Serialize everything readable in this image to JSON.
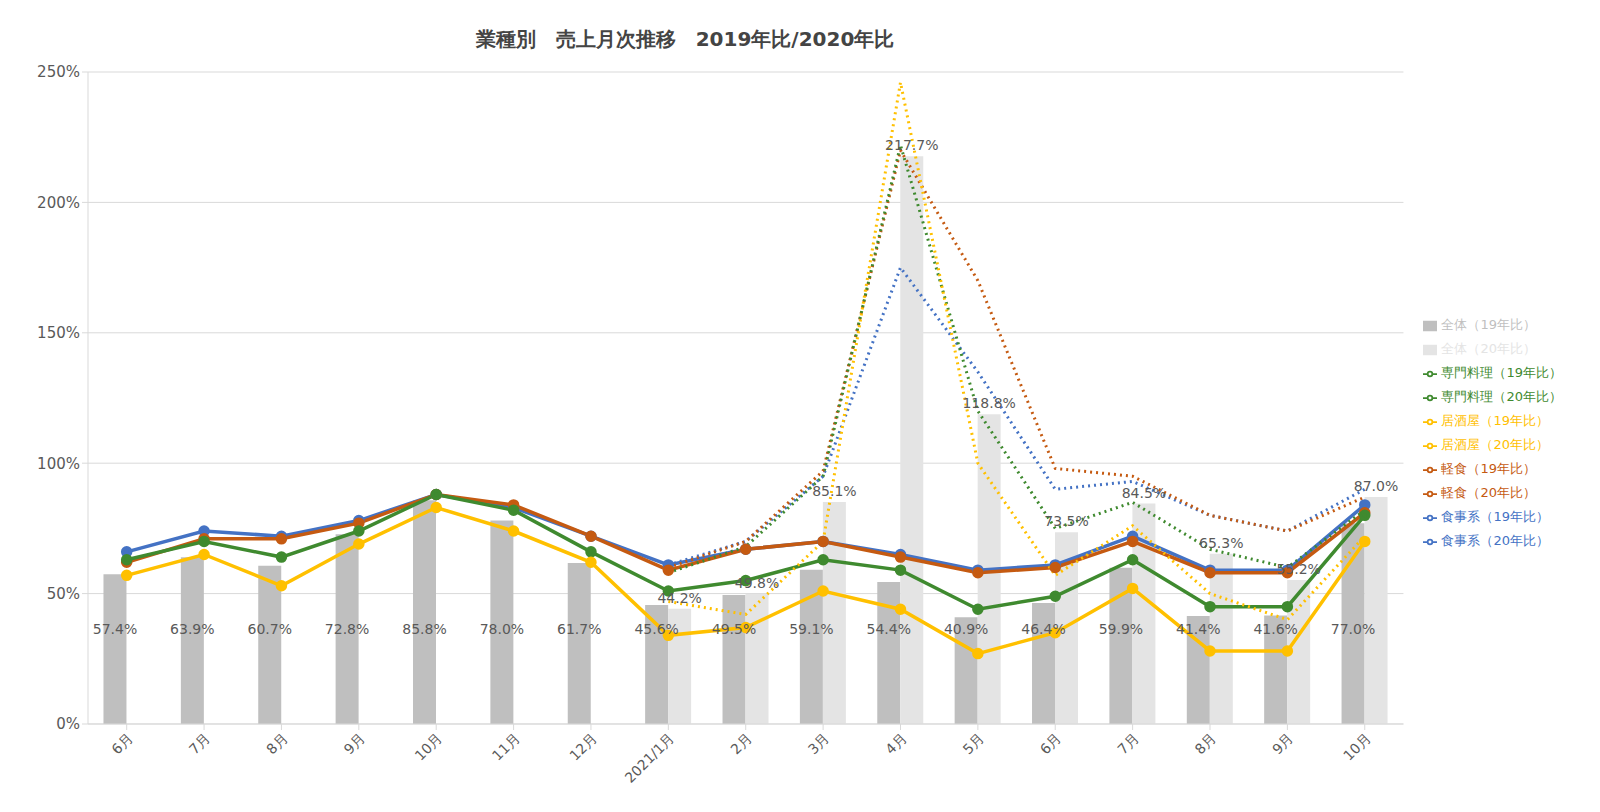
{
  "chart_data": {
    "type": "combo",
    "title": "業種別　売上月次推移　2019年比/2020年比",
    "categories": [
      "6月",
      "7月",
      "8月",
      "9月",
      "10月",
      "11月",
      "12月",
      "2021/1月",
      "2月",
      "3月",
      "4月",
      "5月",
      "6月",
      "7月",
      "8月",
      "9月",
      "10月"
    ],
    "ylim": [
      0,
      250
    ],
    "yticks": [
      {
        "value": 0,
        "label": "0%"
      },
      {
        "value": 50,
        "label": "50%"
      },
      {
        "value": 100,
        "label": "100%"
      },
      {
        "value": 150,
        "label": "150%"
      },
      {
        "value": 200,
        "label": "200%"
      },
      {
        "value": 250,
        "label": "250%"
      }
    ],
    "grid": true,
    "legend": "right",
    "series": [
      {
        "name": "全体（19年比）",
        "type": "bar",
        "color": "#bfbfbf",
        "data_labels": true,
        "values": [
          57.4,
          63.9,
          60.7,
          72.8,
          85.8,
          78.0,
          61.7,
          45.6,
          49.5,
          59.1,
          54.4,
          40.9,
          46.4,
          59.9,
          41.4,
          41.6,
          77.0
        ],
        "value_labels": [
          "57.4%",
          "63.9%",
          "60.7%",
          "72.8%",
          "85.8%",
          "78.0%",
          "61.7%",
          "45.6%",
          "49.5%",
          "59.1%",
          "54.4%",
          "40.9%",
          "46.4%",
          "59.9%",
          "41.4%",
          "41.6%",
          "77.0%"
        ]
      },
      {
        "name": "全体（20年比）",
        "type": "bar",
        "color": "#e4e4e4",
        "data_labels": true,
        "values": [
          null,
          null,
          null,
          null,
          null,
          null,
          null,
          44.2,
          49.8,
          85.1,
          217.7,
          118.8,
          73.5,
          84.5,
          65.3,
          55.2,
          87.0
        ],
        "value_labels": [
          null,
          null,
          null,
          null,
          null,
          null,
          null,
          "44.2%",
          "49.8%",
          "85.1%",
          "217.7%",
          "118.8%",
          "73.5%",
          "84.5%",
          "65.3%",
          "55.2%",
          "87.0%"
        ]
      },
      {
        "name": "食事系（19年比）",
        "type": "line",
        "color": "#4472c4",
        "marker": "circle",
        "line_style": "solid",
        "values": [
          66,
          74,
          72,
          78,
          88,
          83,
          72,
          61,
          67,
          70,
          65,
          59,
          61,
          72,
          59,
          59,
          84
        ]
      },
      {
        "name": "食事系（20年比）",
        "type": "line",
        "color": "#4472c4",
        "marker": "none",
        "line_style": "dotted",
        "values": [
          null,
          null,
          null,
          null,
          null,
          null,
          null,
          61,
          70,
          95,
          175,
          135,
          90,
          93,
          80,
          74,
          90
        ]
      },
      {
        "name": "軽食（19年比）",
        "type": "line",
        "color": "#c55a11",
        "marker": "circle",
        "line_style": "solid",
        "values": [
          62,
          71,
          71,
          77,
          88,
          84,
          72,
          59,
          67,
          70,
          64,
          58,
          60,
          70,
          58,
          58,
          81
        ]
      },
      {
        "name": "軽食（20年比）",
        "type": "line",
        "color": "#c55a11",
        "marker": "none",
        "line_style": "dotted",
        "values": [
          null,
          null,
          null,
          null,
          null,
          null,
          null,
          60,
          70,
          97,
          220,
          170,
          98,
          95,
          80,
          74,
          87
        ]
      },
      {
        "name": "専門料理（19年比）",
        "type": "line",
        "color": "#3f8a2f",
        "marker": "circle",
        "line_style": "solid",
        "values": [
          63,
          70,
          64,
          74,
          88,
          82,
          66,
          51,
          55,
          63,
          59,
          44,
          49,
          63,
          45,
          45,
          80
        ]
      },
      {
        "name": "専門料理（20年比）",
        "type": "line",
        "color": "#3f8a2f",
        "marker": "none",
        "line_style": "dotted",
        "values": [
          null,
          null,
          null,
          null,
          null,
          null,
          null,
          58,
          68,
          95,
          222,
          120,
          75,
          85,
          67,
          60,
          82
        ]
      },
      {
        "name": "居酒屋（19年比）",
        "type": "line",
        "color": "#ffc000",
        "marker": "circle",
        "line_style": "solid",
        "values": [
          57,
          65,
          53,
          69,
          83,
          74,
          62,
          34,
          37,
          51,
          44,
          27,
          35,
          52,
          28,
          28,
          70
        ]
      },
      {
        "name": "居酒屋（20年比）",
        "type": "line",
        "color": "#ffc000",
        "marker": "none",
        "line_style": "dotted",
        "values": [
          null,
          null,
          null,
          null,
          null,
          null,
          null,
          47,
          42,
          70,
          246,
          100,
          57,
          76,
          50,
          40,
          72
        ]
      }
    ]
  }
}
